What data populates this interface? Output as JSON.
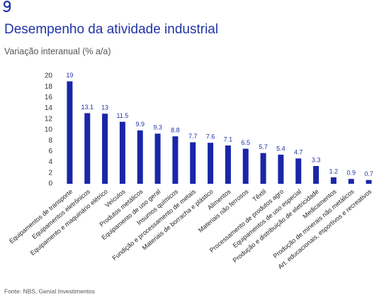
{
  "chart_data": {
    "type": "bar",
    "title": "Desempenho da atividade industrial",
    "subtitle": "Variação interanual (% a/a)",
    "source": "Fonte: NBS, Genial Investimentos",
    "categories": [
      "Equipamentos de transporte",
      "Equipamentos eletrônicos",
      "Equipamento e maquinário elétrico",
      "Veículos",
      "Produtos metálicos",
      "Equipamento de uso geral",
      "Insumos químicos",
      "Fundição e processamento de metais",
      "Materiais de borracha e plástico",
      "Alimentos",
      "Materiais não ferrosos",
      "Têxtil",
      "Processamento de produtos agro",
      "Equipamentos de uso especial",
      "Produção e distribuição de eletricidade",
      "Medicamentos",
      "Produção de minerais não metálicos",
      "Art. educacionais, esportivos e recreativos"
    ],
    "values": [
      19,
      13.1,
      13,
      11.5,
      9.9,
      9.3,
      8.8,
      7.7,
      7.6,
      7.1,
      6.5,
      5.7,
      5.4,
      4.7,
      3.3,
      1.2,
      0.9,
      0.7
    ],
    "color": "#1a26a8",
    "ylim": [
      0,
      20
    ],
    "yticks": [
      0,
      2,
      4,
      6,
      8,
      10,
      12,
      14,
      16,
      18,
      20
    ],
    "grid": false
  }
}
